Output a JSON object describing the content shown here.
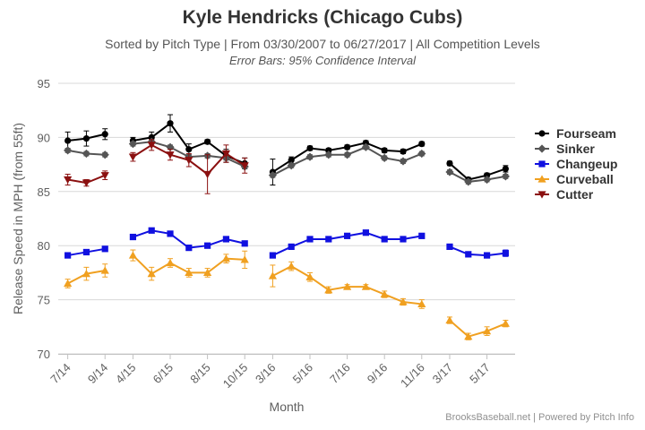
{
  "chart_data": {
    "type": "line",
    "title": "Kyle Hendricks (Chicago Cubs)",
    "subtitle": "Sorted by Pitch Type | From 03/30/2007 to 06/27/2017 | All Competition Levels",
    "subtitle2": "Error Bars: 95% Confidence Interval",
    "credits": "BrooksBaseball.net | Powered by Pitch Info",
    "xlabel": "Month",
    "ylabel": "Release Speed in MPH (from 55ft)",
    "ylim": [
      70,
      95
    ],
    "yticks": [
      70,
      75,
      80,
      85,
      90,
      95
    ],
    "grid": true,
    "legend_position": "right",
    "months": [
      "7/14",
      "8/14",
      "9/14",
      "4/15",
      "5/15",
      "6/15",
      "7/15",
      "8/15",
      "9/15",
      "10/15",
      "3/16",
      "4/16",
      "5/16",
      "6/16",
      "7/16",
      "8/16",
      "9/16",
      "10/16",
      "11/16",
      "3/17",
      "4/17",
      "5/17",
      "6/17"
    ],
    "tick_labels": [
      "7/14",
      "9/14",
      "4/15",
      "6/15",
      "8/15",
      "10/15",
      "3/16",
      "5/16",
      "7/16",
      "9/16",
      "11/16",
      "3/17",
      "5/17"
    ],
    "series": [
      {
        "name": "Fourseam",
        "color": "#000000",
        "marker": "circle",
        "values": [
          89.7,
          89.9,
          90.3,
          89.7,
          90.0,
          91.3,
          88.9,
          89.6,
          88.3,
          87.6,
          86.8,
          87.9,
          89.0,
          88.8,
          89.1,
          89.5,
          88.8,
          88.7,
          89.4,
          87.6,
          86.1,
          86.5,
          87.1
        ],
        "err": [
          0.8,
          0.7,
          0.5,
          0.3,
          0.5,
          0.8,
          0.5,
          0.2,
          0.6,
          0.5,
          1.2,
          0.3,
          0.2,
          0.2,
          0.2,
          0.2,
          0.2,
          0.2,
          0.2,
          0.2,
          0.2,
          0.2,
          0.3
        ]
      },
      {
        "name": "Sinker",
        "color": "#555555",
        "marker": "diamond",
        "values": [
          88.8,
          88.5,
          88.4,
          89.4,
          89.6,
          89.1,
          88.2,
          88.3,
          88.1,
          87.3,
          86.5,
          87.4,
          88.2,
          88.4,
          88.4,
          89.1,
          88.1,
          87.8,
          88.5,
          86.8,
          85.9,
          86.1,
          86.4
        ],
        "err": [
          0.2,
          0.2,
          0.2,
          0.2,
          0.2,
          0.2,
          0.2,
          0.2,
          0.2,
          0.2,
          0.2,
          0.2,
          0.2,
          0.2,
          0.2,
          0.2,
          0.2,
          0.2,
          0.2,
          0.2,
          0.2,
          0.2,
          0.2
        ]
      },
      {
        "name": "Changeup",
        "color": "#1010e0",
        "marker": "square",
        "values": [
          79.1,
          79.4,
          79.7,
          80.8,
          81.4,
          81.1,
          79.8,
          80.0,
          80.6,
          80.2,
          79.1,
          79.9,
          80.6,
          80.6,
          80.9,
          81.2,
          80.6,
          80.6,
          80.9,
          79.9,
          79.2,
          79.1,
          79.3
        ],
        "err": [
          0.2,
          0.2,
          0.2,
          0.2,
          0.2,
          0.2,
          0.2,
          0.2,
          0.2,
          0.2,
          0.2,
          0.2,
          0.2,
          0.2,
          0.2,
          0.2,
          0.2,
          0.2,
          0.2,
          0.2,
          0.2,
          0.2,
          0.3
        ]
      },
      {
        "name": "Curveball",
        "color": "#f0a020",
        "marker": "triangle",
        "values": [
          76.5,
          77.4,
          77.7,
          79.1,
          77.4,
          78.4,
          77.5,
          77.5,
          78.8,
          78.7,
          77.2,
          78.1,
          77.1,
          75.9,
          76.2,
          76.2,
          75.5,
          74.8,
          74.6,
          73.1,
          71.6,
          72.1,
          72.8
        ],
        "err": [
          0.4,
          0.6,
          0.6,
          0.5,
          0.6,
          0.4,
          0.4,
          0.4,
          0.4,
          0.8,
          1.0,
          0.4,
          0.4,
          0.3,
          0.2,
          0.2,
          0.3,
          0.3,
          0.4,
          0.3,
          0.3,
          0.4,
          0.3
        ]
      },
      {
        "name": "Cutter",
        "color": "#8b1010",
        "marker": "triangle-down",
        "values": [
          86.1,
          85.8,
          86.5,
          88.2,
          89.3,
          88.4,
          87.9,
          86.6,
          88.5,
          87.4,
          null,
          null,
          null,
          null,
          null,
          null,
          null,
          null,
          null,
          null,
          null,
          null,
          null
        ],
        "err": [
          0.5,
          0.3,
          0.4,
          0.4,
          0.5,
          0.5,
          0.6,
          1.8,
          0.8,
          0.7,
          null,
          null,
          null,
          null,
          null,
          null,
          null,
          null,
          null,
          null,
          null,
          null,
          null
        ]
      }
    ]
  }
}
